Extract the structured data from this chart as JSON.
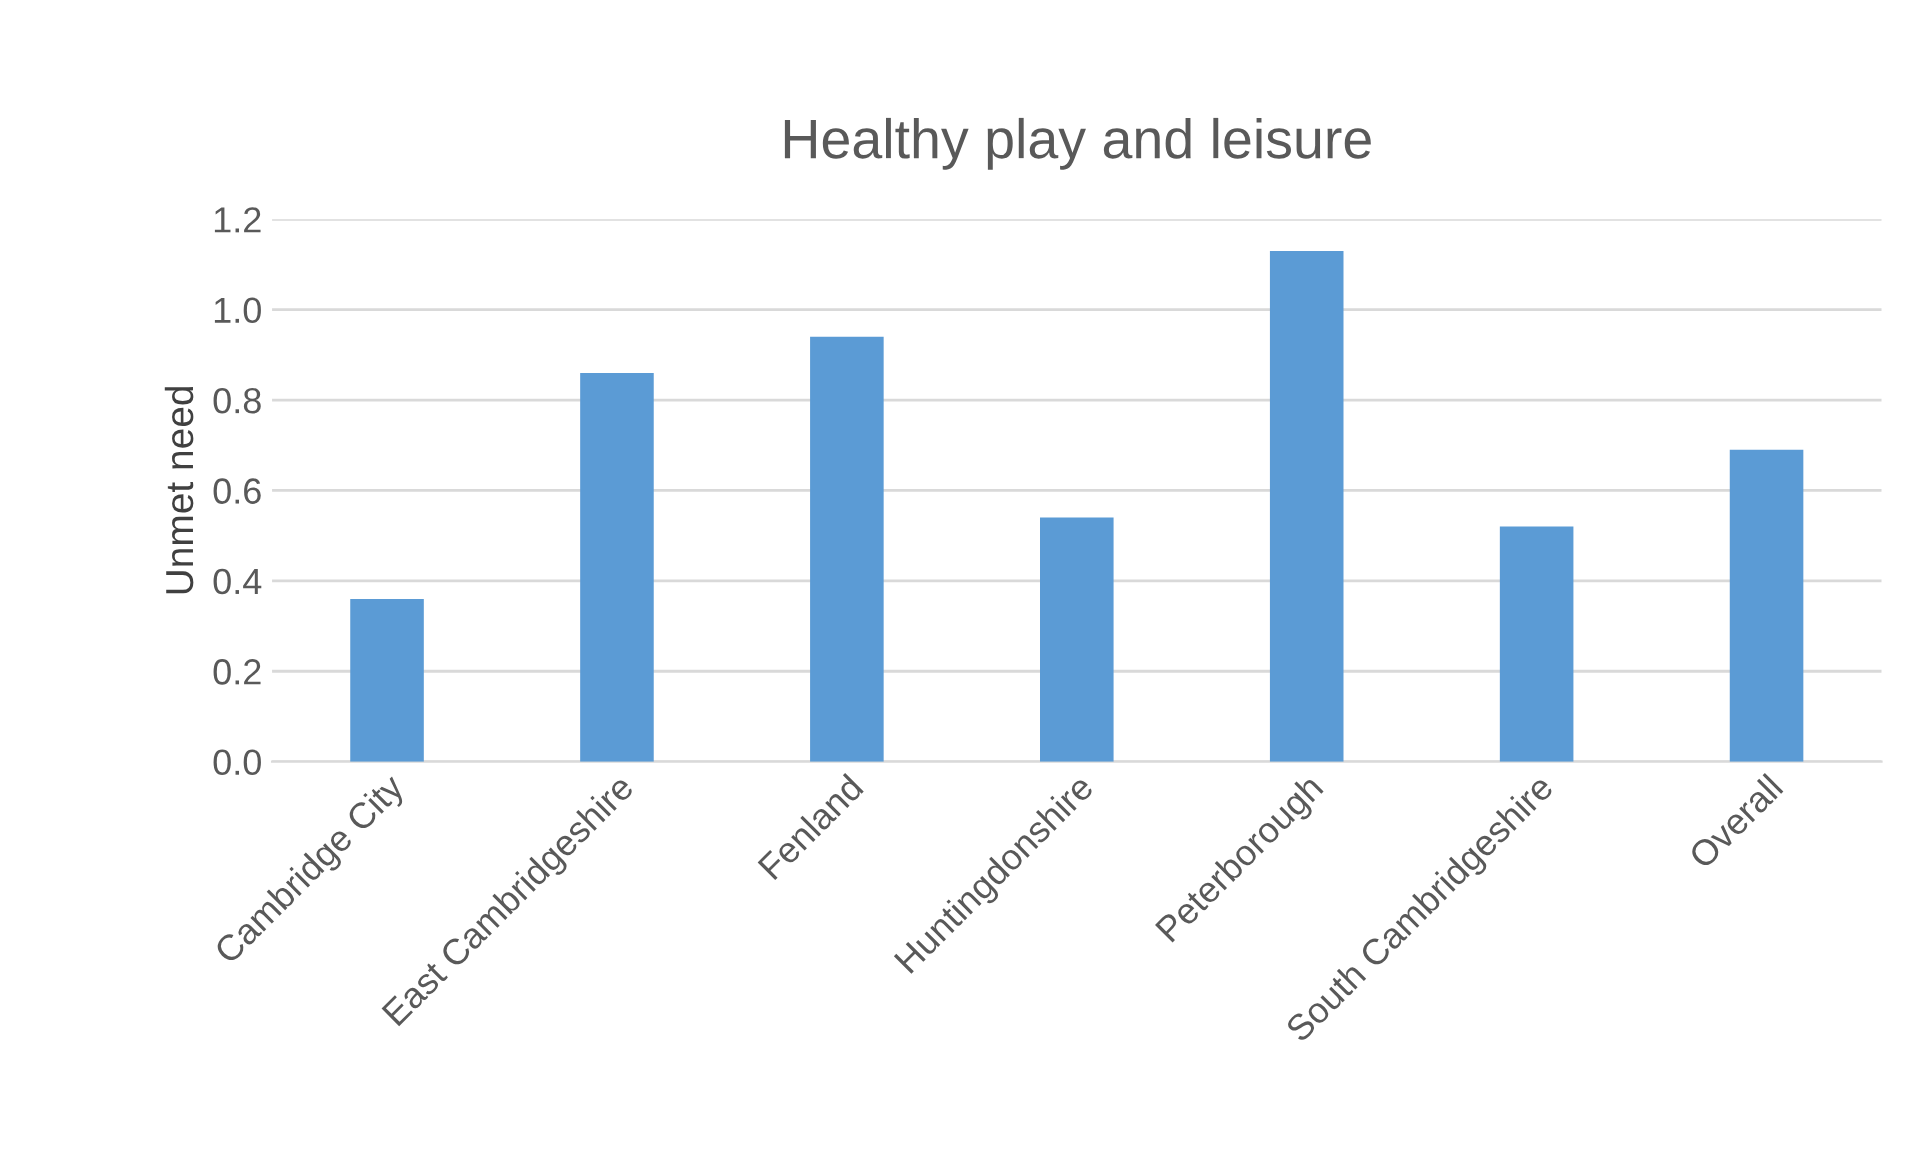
{
  "chart_data": {
    "type": "bar",
    "title": "Healthy play and leisure",
    "ylabel": "Unmet need",
    "categories": [
      "Cambridge City",
      "East Cambridgeshire",
      "Fenland",
      "Huntingdonshire",
      "Peterborough",
      "South Cambridgeshire",
      "Overall"
    ],
    "values": [
      0.36,
      0.86,
      0.94,
      0.54,
      1.13,
      0.52,
      0.69
    ],
    "color": "#5b9bd5",
    "ylim": [
      0,
      1.2
    ],
    "yticks": [
      {
        "value": 0,
        "label": "0.0"
      },
      {
        "value": 0.2,
        "label": "0.2"
      },
      {
        "value": 0.4,
        "label": "0.4"
      },
      {
        "value": 0.6,
        "label": "0.6"
      },
      {
        "value": 0.8,
        "label": "0.8"
      },
      {
        "value": 1.0,
        "label": "1.0"
      },
      {
        "value": 1.2,
        "label": "1.2"
      }
    ],
    "grid": "y"
  }
}
